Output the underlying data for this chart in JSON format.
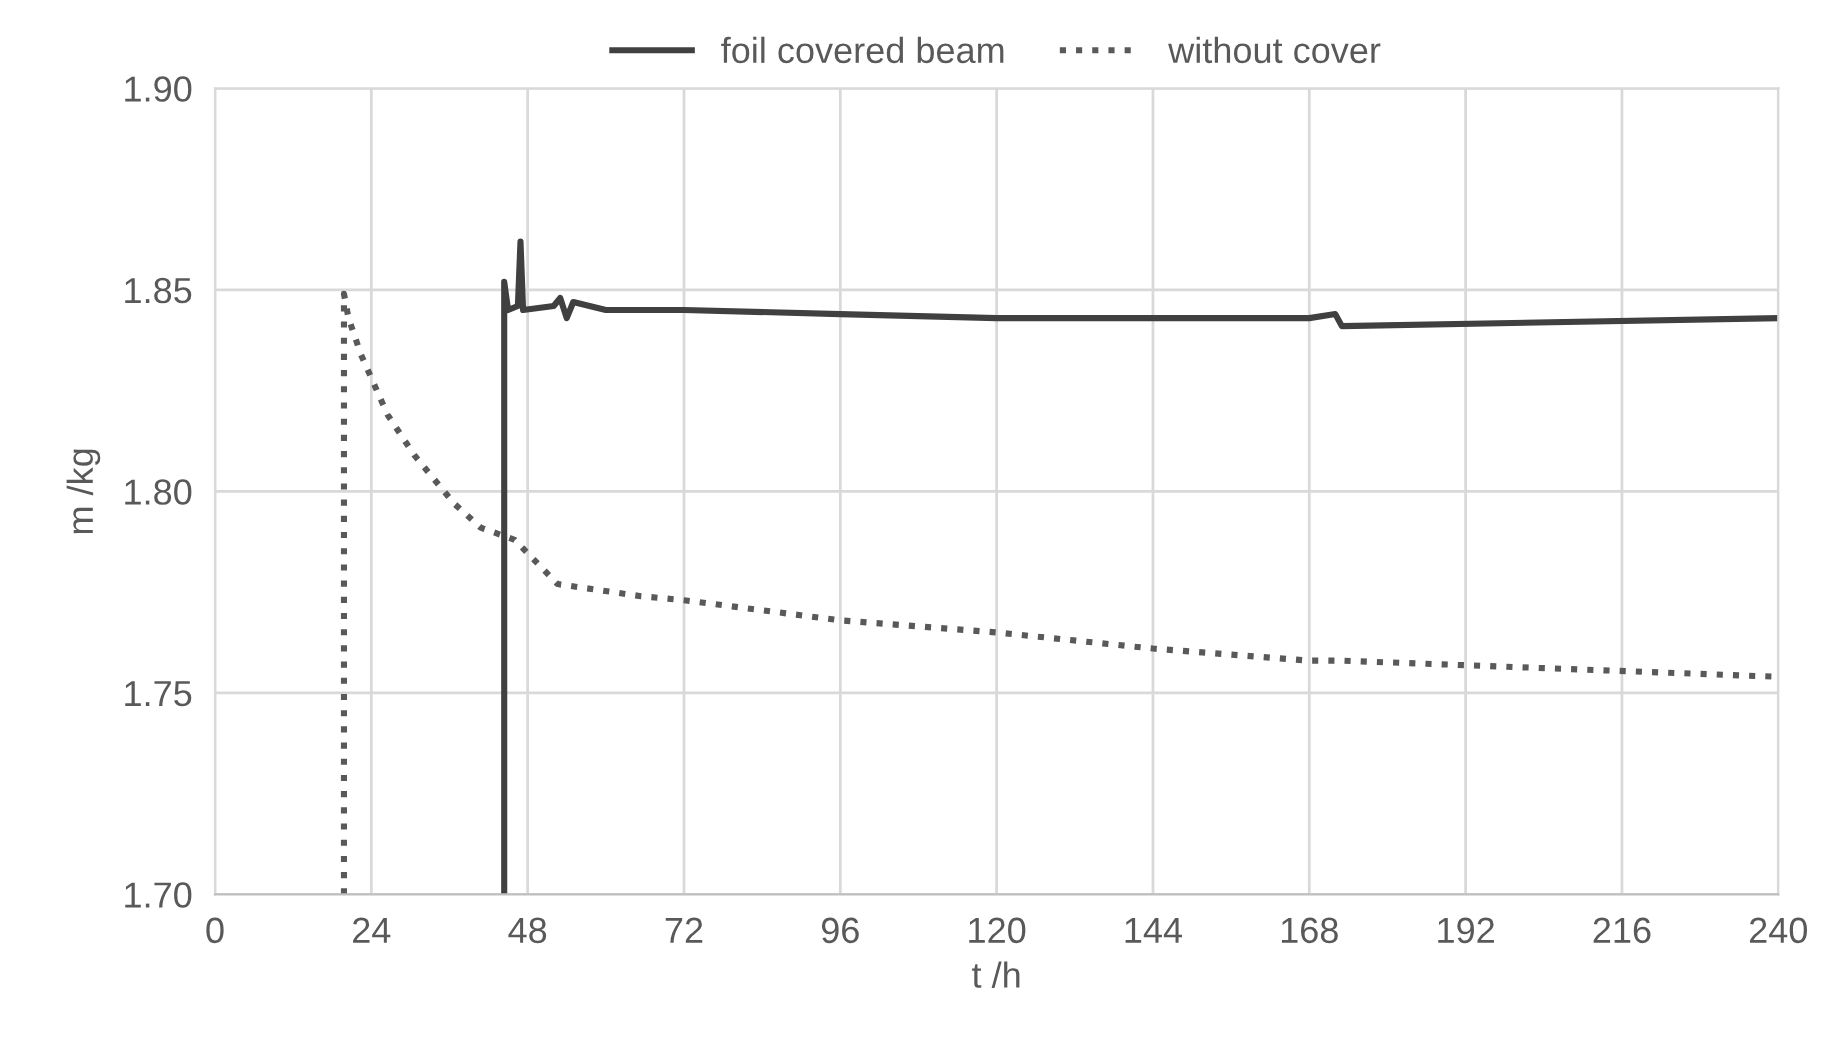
{
  "chart_data": {
    "type": "line",
    "xlabel": "t /h",
    "ylabel": "m /kg",
    "xlim": [
      0,
      240
    ],
    "xticks": [
      0,
      24,
      48,
      72,
      96,
      120,
      144,
      168,
      192,
      216,
      240
    ],
    "ylim": [
      1.7,
      1.9
    ],
    "yticks": [
      {
        "value": 1.7,
        "label": "1.70"
      },
      {
        "value": 1.75,
        "label": "1.75"
      },
      {
        "value": 1.8,
        "label": "1.80"
      },
      {
        "value": 1.85,
        "label": "1.85"
      },
      {
        "value": 1.9,
        "label": "1.90"
      }
    ],
    "grid": true,
    "legend": "top",
    "marker": "none",
    "series": [
      {
        "name": "foil covered beam",
        "color": "#404040",
        "line_style": "solid",
        "x": [
          44.4,
          44.4,
          45.0,
          46.5,
          46.9,
          47.3,
          52.0,
          53.0,
          54.0,
          55.0,
          60.0,
          72.0,
          96.0,
          120.0,
          144.0,
          168.0,
          172.0,
          173.0,
          240.0
        ],
        "values": [
          1.7,
          1.852,
          1.845,
          1.846,
          1.862,
          1.845,
          1.846,
          1.848,
          1.843,
          1.847,
          1.845,
          1.845,
          1.844,
          1.843,
          1.843,
          1.843,
          1.844,
          1.841,
          1.843
        ]
      },
      {
        "name": "without cover",
        "color": "#595959",
        "line_style": "dotted",
        "x": [
          19.8,
          19.8,
          20.5,
          22.4,
          26.5,
          30.6,
          36.7,
          40.8,
          46.0,
          52.6,
          65.4,
          72.0,
          96.0,
          120.0,
          144.0,
          168.0,
          173.0,
          240.0
        ],
        "values": [
          1.7,
          1.849,
          1.843,
          1.834,
          1.819,
          1.809,
          1.797,
          1.791,
          1.788,
          1.777,
          1.774,
          1.773,
          1.768,
          1.765,
          1.761,
          1.758,
          1.758,
          1.754
        ]
      }
    ]
  }
}
